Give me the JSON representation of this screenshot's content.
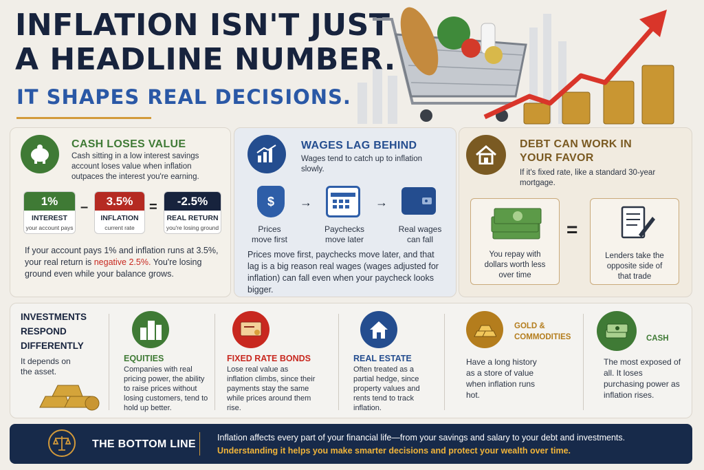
{
  "header": {
    "title_line1": "INFLATION ISN'T JUST",
    "title_line2": "A HEADLINE NUMBER.",
    "subtitle": "IT SHAPES REAL DECISIONS."
  },
  "cash": {
    "title": "CASH LOSES VALUE",
    "desc": "Cash sitting in a low interest savings account loses value when inflation outpaces the interest you're earning.",
    "boxes": [
      {
        "value": "1%",
        "label": "INTEREST",
        "sub": "your account pays",
        "color": "#3f7a35"
      },
      {
        "value": "3.5%",
        "label": "INFLATION",
        "sub": "current rate",
        "color": "#b52a22"
      },
      {
        "value": "-2.5%",
        "label": "REAL RETURN",
        "sub": "you're losing ground",
        "color": "#17233d"
      }
    ],
    "op_minus": "–",
    "op_equals": "=",
    "body_a": "If your account pays 1% and inflation runs at 3.5%, your real return is ",
    "body_neg": "negative 2.5%.",
    "body_b": " You're losing ground even while your balance grows."
  },
  "wages": {
    "title": "WAGES LAG BEHIND",
    "desc": "Wages tend to catch up to inflation slowly.",
    "steps": [
      {
        "line1": "Prices",
        "line2": "move first"
      },
      {
        "line1": "Paychecks",
        "line2": "move later"
      },
      {
        "line1": "Real wages",
        "line2": "can fall"
      }
    ],
    "arrow": "→",
    "body": "Prices move first, paychecks move later, and that lag is a big reason real wages (wages adjusted for inflation) can fall even when your paycheck looks bigger."
  },
  "debt": {
    "title_line1": "DEBT CAN WORK IN",
    "title_line2": "YOUR FAVOR",
    "desc": "If it's fixed rate, like a standard 30-year mortgage.",
    "equals": "=",
    "card1": {
      "l1": "You repay with",
      "l2": "dollars worth less",
      "l3": "over time"
    },
    "card2": {
      "l1": "Lenders take the",
      "l2": "opposite side of",
      "l3": "that trade"
    }
  },
  "investments": {
    "title_l1": "INVESTMENTS",
    "title_l2": "RESPOND",
    "title_l3": "DIFFERENTLY",
    "desc_l1": "It depends on",
    "desc_l2": "the asset.",
    "equities": {
      "title": "EQUITIES",
      "text": "Companies with real pricing power, the ability to raise prices without losing customers, tend to hold up better."
    },
    "bonds": {
      "title": "FIXED RATE BONDS",
      "text": "Lose real value as inflation climbs, since their payments stay the same while prices around them rise."
    },
    "realestate": {
      "title": "REAL ESTATE",
      "text": "Often treated as a partial hedge, since property values and rents tend to track inflation."
    },
    "gold": {
      "title_l1": "GOLD &",
      "title_l2": "COMMODITIES",
      "text": "Have a long history as a store of value when inflation runs hot."
    },
    "cash": {
      "title": "CASH",
      "text": "The most exposed of all. It loses purchasing power as inflation rises."
    }
  },
  "bottom": {
    "title": "THE BOTTOM LINE",
    "line1": "Inflation affects every part of your financial life—from your savings and salary to your debt and investments.",
    "line2": "Understanding it helps you make smarter decisions and protect your wealth over time."
  },
  "colors": {
    "navy": "#17233d",
    "blue": "#2a58a6",
    "green": "#3f7a35",
    "red": "#c8281f",
    "gold": "#b47d1d",
    "brown": "#7a5a22"
  }
}
